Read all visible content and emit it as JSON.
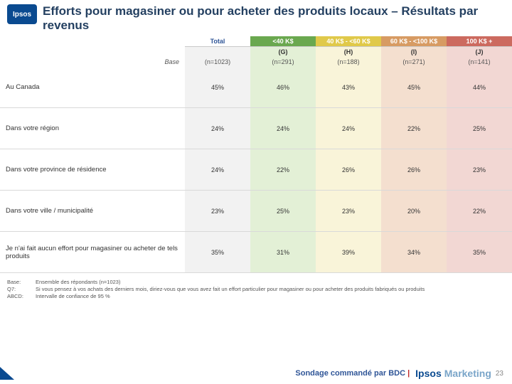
{
  "logo_text": "Ipsos",
  "title": "Efforts pour magasiner ou pour acheter des produits locaux – Résultats par revenus",
  "table": {
    "header1": [
      "Total",
      "<40 K$",
      "40 K$ - <60 K$",
      "60 K$ - <100 K$",
      "100 K$ +"
    ],
    "header2": [
      "",
      "(G)",
      "(H)",
      "(I)",
      "(J)"
    ],
    "base_label": "Base",
    "bases": [
      "(n=1023)",
      "(n=291)",
      "(n=188)",
      "(n=271)",
      "(n=141)"
    ],
    "rows": [
      {
        "label": "Au Canada",
        "vals": [
          "45%",
          "46%",
          "43%",
          "45%",
          "44%"
        ]
      },
      {
        "label": "Dans votre région",
        "vals": [
          "24%",
          "24%",
          "24%",
          "22%",
          "25%"
        ]
      },
      {
        "label": "Dans votre province de résidence",
        "vals": [
          "24%",
          "22%",
          "26%",
          "26%",
          "23%"
        ]
      },
      {
        "label": "Dans votre ville / municipalité",
        "vals": [
          "23%",
          "25%",
          "23%",
          "20%",
          "22%"
        ]
      },
      {
        "label": "Je n'ai fait aucun effort pour magasiner ou acheter de tels produits",
        "vals": [
          "35%",
          "31%",
          "39%",
          "34%",
          "35%"
        ]
      }
    ],
    "col_bg": [
      "#f2f2f2",
      "#e3f0d6",
      "#f9f4d9",
      "#f4dfcf",
      "#f2d7d3"
    ],
    "hdr_bg": [
      "#ffffff",
      "#6aa84f",
      "#e0c94a",
      "#d79b63",
      "#cc6a5f"
    ],
    "hdr_fg": [
      "#2f5597",
      "#ffffff",
      "#ffffff",
      "#ffffff",
      "#ffffff"
    ]
  },
  "footer": {
    "l1a": "Base:",
    "l1b": "Ensemble des répondants (n=1023)",
    "l2a": "Q7:",
    "l2b": "Si vous pensez à vos achats des derniers mois, diriez-vous que vous avez fait un effort particulier pour magasiner ou pour acheter des produits fabriqués ou produits",
    "l3a": "ABCD:",
    "l3b": "Intervalle de confiance de 95 %"
  },
  "bottom": {
    "sondage": "Sondage commandé par BDC",
    "brand1": "Ipsos",
    "brand2": "Marketing",
    "page": "23"
  }
}
